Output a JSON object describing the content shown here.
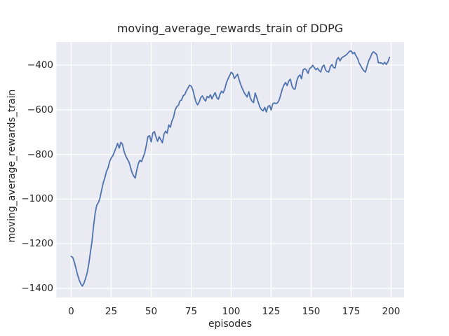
{
  "style": {
    "figure_bg": "#ffffff",
    "axes_bg": "#eaeaf2",
    "grid_color": "#ffffff",
    "text_color": "#262626",
    "line_color": "#4c72b0"
  },
  "chart_data": {
    "type": "line",
    "title": "moving_average_rewards_train of DDPG",
    "xlabel": "episodes",
    "ylabel": "moving_average_rewards_train",
    "x_ticks": [
      0,
      25,
      50,
      75,
      100,
      125,
      150,
      175,
      200
    ],
    "y_ticks": [
      -400,
      -600,
      -800,
      -1000,
      -1200,
      -1400
    ],
    "xlim": [
      -9.2,
      208.1
    ],
    "ylim": [
      -1441,
      -296.5
    ],
    "grid": true,
    "legend_position": "none",
    "series": [
      {
        "name": "moving_average_rewards_train",
        "color": "#4c72b0",
        "x_start": 0,
        "x_step": 1,
        "values": [
          -1257,
          -1262,
          -1283,
          -1310,
          -1340,
          -1363,
          -1380,
          -1390,
          -1377,
          -1355,
          -1330,
          -1290,
          -1240,
          -1190,
          -1120,
          -1062,
          -1027,
          -1016,
          -996,
          -960,
          -928,
          -905,
          -878,
          -861,
          -833,
          -816,
          -806,
          -789,
          -771,
          -751,
          -772,
          -746,
          -753,
          -785,
          -805,
          -820,
          -832,
          -855,
          -880,
          -896,
          -906,
          -869,
          -841,
          -826,
          -832,
          -812,
          -792,
          -757,
          -720,
          -716,
          -744,
          -704,
          -698,
          -722,
          -741,
          -721,
          -734,
          -748,
          -710,
          -696,
          -705,
          -668,
          -678,
          -650,
          -634,
          -600,
          -586,
          -580,
          -560,
          -556,
          -537,
          -532,
          -515,
          -503,
          -490,
          -494,
          -510,
          -540,
          -565,
          -578,
          -566,
          -545,
          -538,
          -551,
          -561,
          -540,
          -546,
          -533,
          -551,
          -536,
          -523,
          -546,
          -553,
          -531,
          -517,
          -524,
          -507,
          -480,
          -462,
          -448,
          -432,
          -438,
          -460,
          -450,
          -441,
          -466,
          -488,
          -505,
          -521,
          -533,
          -543,
          -519,
          -548,
          -561,
          -568,
          -525,
          -546,
          -568,
          -589,
          -600,
          -605,
          -589,
          -610,
          -586,
          -581,
          -601,
          -573,
          -570,
          -572,
          -569,
          -556,
          -532,
          -506,
          -489,
          -478,
          -492,
          -471,
          -463,
          -494,
          -506,
          -507,
          -471,
          -451,
          -444,
          -461,
          -421,
          -416,
          -422,
          -437,
          -416,
          -411,
          -401,
          -412,
          -421,
          -414,
          -424,
          -431,
          -407,
          -400,
          -421,
          -429,
          -431,
          -407,
          -397,
          -411,
          -413,
          -376,
          -366,
          -381,
          -369,
          -363,
          -359,
          -354,
          -346,
          -338,
          -337,
          -349,
          -343,
          -358,
          -369,
          -391,
          -403,
          -416,
          -426,
          -431,
          -404,
          -380,
          -366,
          -348,
          -340,
          -346,
          -353,
          -389,
          -390,
          -391,
          -396,
          -387,
          -397,
          -385,
          -365
        ]
      }
    ]
  }
}
